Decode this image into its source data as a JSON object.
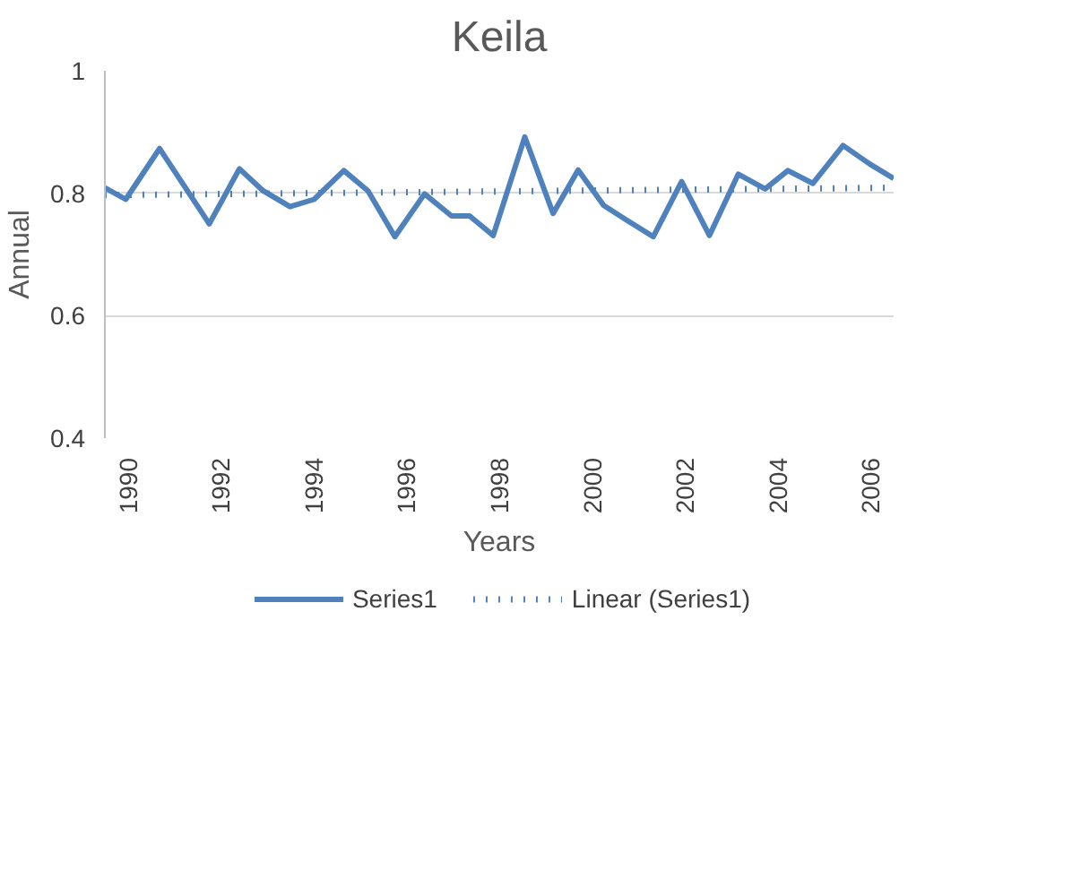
{
  "chart_data": {
    "type": "line",
    "title": "Keila",
    "xlabel": "Years",
    "ylabel": "Annual",
    "xlim": [
      1989.5,
      2006.5
    ],
    "xticks": [
      1990,
      1992,
      1994,
      1996,
      1998,
      2000,
      2002,
      2004,
      2006
    ],
    "ylim": [
      0.4,
      1
    ],
    "yticks": [
      0.4,
      0.6,
      0.8,
      1
    ],
    "grid": "y",
    "legend": "bottom",
    "marker": "none",
    "series": [
      {
        "name": "Series1",
        "color": "#4f81bd",
        "line_style": "solid",
        "x": [
          1989.5,
          1989.95,
          1990.68,
          1991.75,
          1992.4,
          1992.91,
          1993.49,
          1994.01,
          1994.65,
          1995.17,
          1995.75,
          1996.39,
          1996.97,
          1997.36,
          1997.87,
          1998.55,
          1999.16,
          1999.7,
          2000.25,
          2000.77,
          2001.32,
          2001.93,
          2002.53,
          2003.15,
          2003.73,
          2004.22,
          2004.76,
          2005.41,
          2005.98,
          2006.5
        ],
        "values": [
          0.809,
          0.79,
          0.873,
          0.75,
          0.84,
          0.804,
          0.778,
          0.79,
          0.837,
          0.804,
          0.729,
          0.799,
          0.763,
          0.763,
          0.731,
          0.892,
          0.767,
          0.838,
          0.78,
          0.755,
          0.729,
          0.819,
          0.731,
          0.831,
          0.807,
          0.837,
          0.816,
          0.878,
          0.848,
          0.824
        ]
      },
      {
        "name": "Linear (Series1)",
        "color": "#4f81bd",
        "line_style": "dotted",
        "x": [
          1989.5,
          2006.5
        ],
        "values": [
          0.797,
          0.809
        ]
      }
    ]
  }
}
